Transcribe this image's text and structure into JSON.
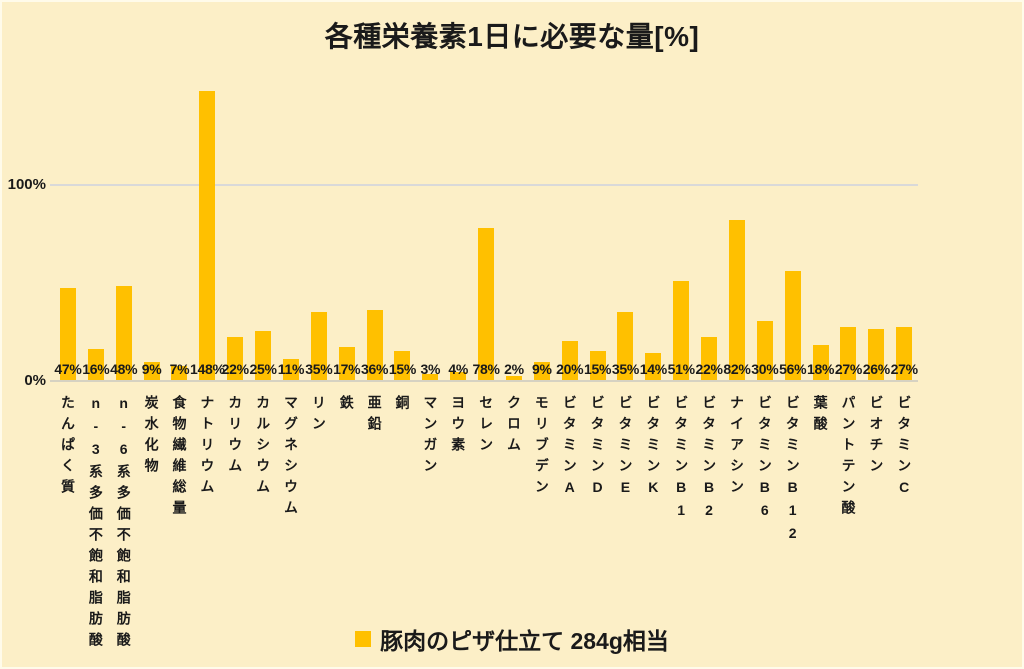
{
  "title": "各種栄養素1日に必要な量[%]",
  "y_axis": {
    "tick_100": "100%",
    "tick_0": "0%"
  },
  "legend": {
    "label": "豚肉のピザ仕立て 284g相当"
  },
  "colors": {
    "background": "#FCEFC7",
    "bar": "#FFC000",
    "gridline": "#D9D9D9",
    "text": "#1A1A1A"
  },
  "chart_data": {
    "type": "bar",
    "title": "各種栄養素1日に必要な量[%]",
    "categories": [
      "たんぱく質",
      "n-3系多価不飽和脂肪酸",
      "n-6系多価不飽和脂肪酸",
      "炭水化物",
      "食物繊維総量",
      "ナトリウム",
      "カリウム",
      "カルシウム",
      "マグネシウム",
      "リン",
      "鉄",
      "亜鉛",
      "銅",
      "マンガン",
      "ヨウ素",
      "セレン",
      "クロム",
      "モリブデン",
      "ビタミンA",
      "ビタミンD",
      "ビタミンE",
      "ビタミンK",
      "ビタミンB1",
      "ビタミンB2",
      "ナイアシン",
      "ビタミンB6",
      "ビタミンB12",
      "葉酸",
      "パントテン酸",
      "ビオチン",
      "ビタミンC"
    ],
    "values": [
      47,
      16,
      48,
      9,
      7,
      148,
      22,
      25,
      11,
      35,
      17,
      36,
      15,
      3,
      4,
      78,
      2,
      9,
      20,
      15,
      35,
      14,
      51,
      22,
      82,
      30,
      56,
      18,
      27,
      26,
      27
    ],
    "unit": "%",
    "series": [
      {
        "name": "豚肉のピザ仕立て 284g相当",
        "values": [
          47,
          16,
          48,
          9,
          7,
          148,
          22,
          25,
          11,
          35,
          17,
          36,
          15,
          3,
          4,
          78,
          2,
          9,
          20,
          15,
          35,
          14,
          51,
          22,
          82,
          30,
          56,
          18,
          27,
          26,
          27
        ]
      }
    ],
    "xlabel": "",
    "ylabel": "",
    "ylim": [
      0,
      150
    ],
    "y_ticks": [
      "0%",
      "100%"
    ],
    "gridlines": [
      100
    ],
    "data_labels": "inside-base",
    "legend_position": "bottom-center"
  }
}
